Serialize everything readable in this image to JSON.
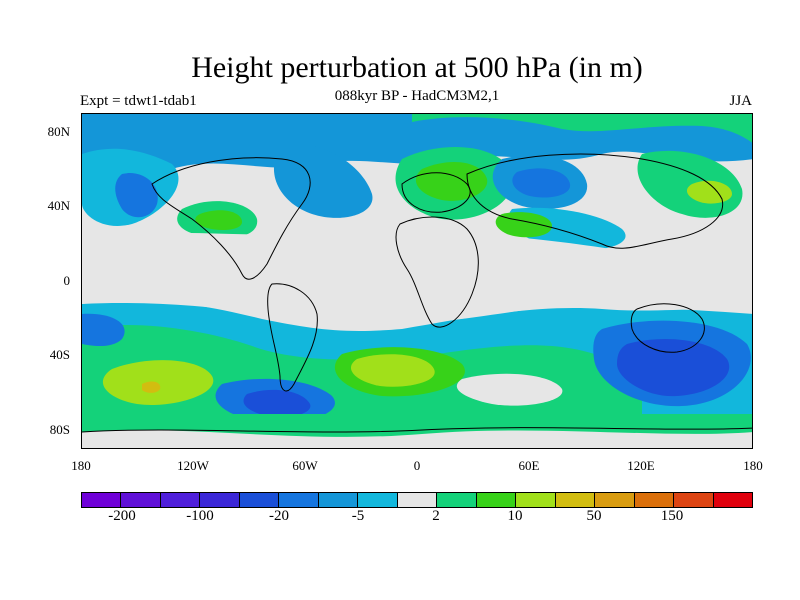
{
  "title": "Height perturbation at 500 hPa (in m)",
  "subtitle": "088kyr BP - HadCM3M2,1",
  "experiment": "Expt = tdwt1-tdab1",
  "season": "JJA",
  "lat_labels": [
    "80N",
    "40N",
    "0",
    "40S",
    "80S"
  ],
  "lon_labels": [
    "180",
    "120W",
    "60W",
    "0",
    "60E",
    "120E",
    "180"
  ],
  "colorbar": {
    "colors": [
      "#6f00d8",
      "#6010d8",
      "#4f1fdb",
      "#3b27d8",
      "#1a4fd8",
      "#1575df",
      "#1496d8",
      "#12b7dc",
      "#e6e6e6",
      "#14d27a",
      "#37d219",
      "#a1e01a",
      "#d2bd10",
      "#d99c10",
      "#db6f0a",
      "#dd4412",
      "#e0000d"
    ],
    "labels": [
      "-200",
      "-100",
      "-20",
      "-5",
      "2",
      "10",
      "50",
      "150"
    ]
  }
}
